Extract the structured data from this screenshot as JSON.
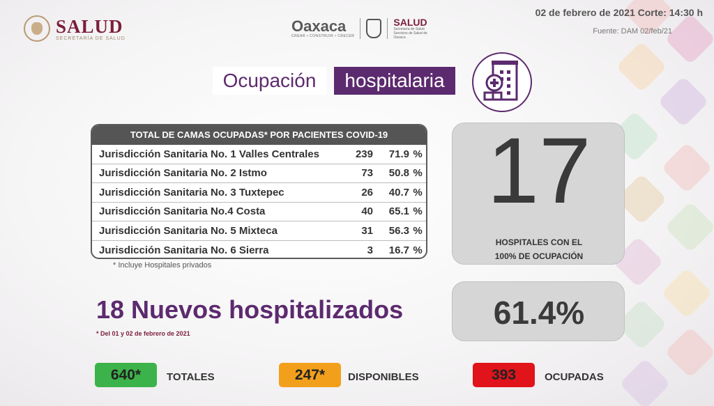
{
  "header": {
    "salud_logo": {
      "title": "SALUD",
      "subtitle": "SECRETARÍA DE SALUD"
    },
    "center_logos": {
      "oaxaca_word": "Oaxaca",
      "oaxaca_tagline": "CREAR • CONSTRUIR • CRECER",
      "salud_title": "SALUD",
      "salud_sub": "Secretaría de Salud Servicios de Salud de Oaxaca"
    },
    "date_line": "02 de febrero de  2021 Corte: 14:30 h",
    "source_line": "Fuente: DAM 02/feb/21"
  },
  "title": {
    "part1": "Ocupación",
    "part2": "hospitalaria",
    "icon": "hospital-building-icon"
  },
  "table": {
    "header": "TOTAL DE CAMAS OCUPADAS* POR PACIENTES COVID-19",
    "rows": [
      {
        "name": "Jurisdicción Sanitaria No. 1 Valles Centrales",
        "beds": "239",
        "pct": "71.9",
        "sym": "%"
      },
      {
        "name": "Jurisdicción Sanitaria No. 2 Istmo",
        "beds": "73",
        "pct": "50.8",
        "sym": "%"
      },
      {
        "name": "Jurisdicción Sanitaria No. 3 Tuxtepec",
        "beds": "26",
        "pct": "40.7",
        "sym": "%"
      },
      {
        "name": "Jurisdicción Sanitaria No.4 Costa",
        "beds": "40",
        "pct": "65.1",
        "sym": "%"
      },
      {
        "name": "Jurisdicción Sanitaria No. 5 Mixteca",
        "beds": "31",
        "pct": "56.3",
        "sym": "%"
      },
      {
        "name": "Jurisdicción Sanitaria No. 6 Sierra",
        "beds": "3",
        "pct": "16.7",
        "sym": "%"
      }
    ],
    "footnote": "* Incluye Hospitales privados"
  },
  "full_hospitals": {
    "count": "17",
    "label_line1": "HOSPITALES CON EL",
    "label_line2": "100% DE OCUPACIÓN"
  },
  "overall_pct": "61.4%",
  "new_admissions": {
    "text": "18 Nuevos hospitalizados",
    "note": "* Del 01 y 02 de febrero de 2021"
  },
  "summary": {
    "total": {
      "value": "640*",
      "label": "TOTALES",
      "color": "#3cb34a"
    },
    "available": {
      "value": "247*",
      "label": "DISPONIBLES",
      "color": "#f2a01c"
    },
    "occupied": {
      "value": "393",
      "label": "OCUPADAS",
      "color": "#e0141a"
    }
  },
  "colors": {
    "accent_purple": "#5c2a6e",
    "brand_wine": "#7b1e3a"
  }
}
